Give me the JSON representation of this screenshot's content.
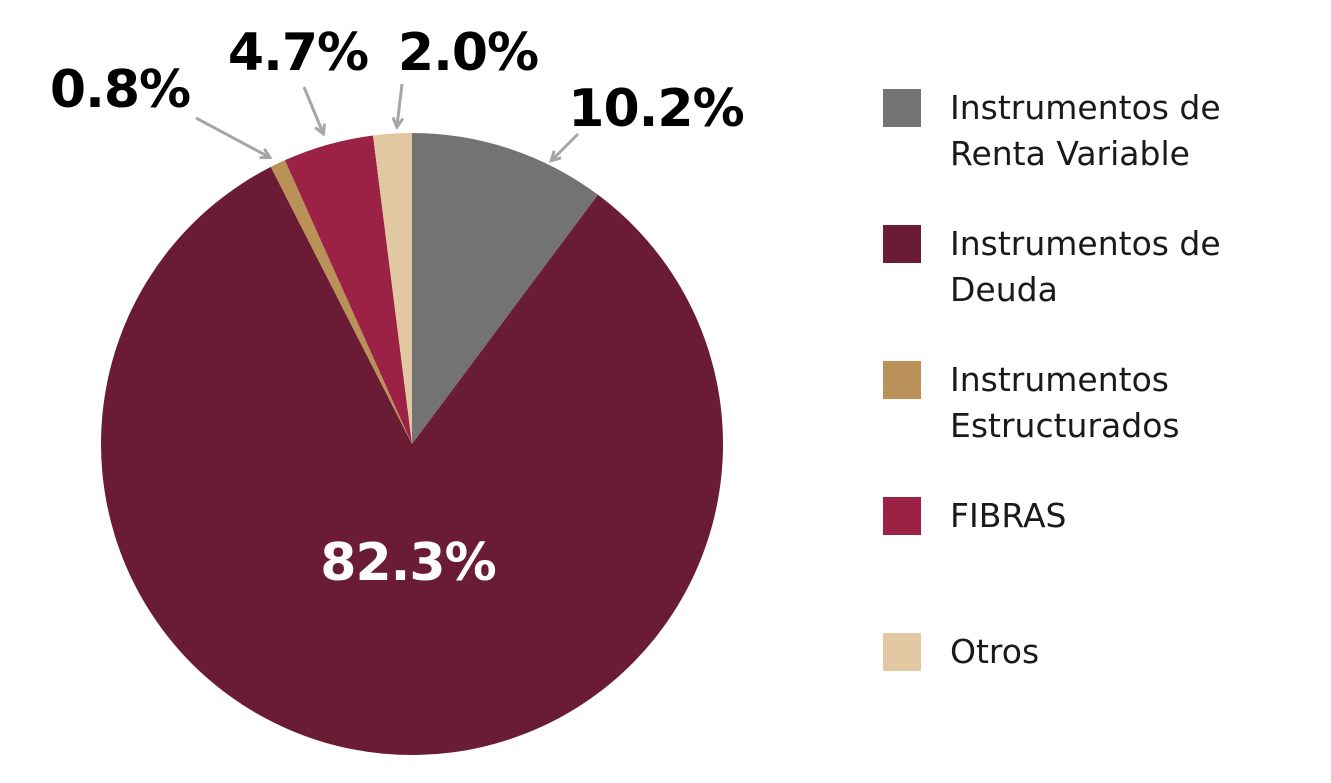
{
  "chart_data": {
    "type": "pie",
    "title": "",
    "categories": [
      "Instrumentos de Renta Variable",
      "Instrumentos de Deuda",
      "Instrumentos Estructurados",
      "FIBRAS",
      "Otros"
    ],
    "values": [
      10.2,
      82.3,
      0.8,
      4.7,
      2.0
    ],
    "value_labels": [
      "10.2%",
      "82.3%",
      "0.8%",
      "4.7%",
      "2.0%"
    ],
    "colors": [
      "#737373",
      "#6a1c35",
      "#b99159",
      "#9b2245",
      "#e1c8a3"
    ],
    "legend_lines": [
      [
        "Instrumentos de",
        "Renta Variable"
      ],
      [
        "Instrumentos de",
        "Deuda"
      ],
      [
        "Instrumentos",
        "Estructurados"
      ],
      [
        "FIBRAS"
      ],
      [
        "Otros"
      ]
    ],
    "start_angle": "top (12 o'clock)",
    "direction": "clockwise",
    "legend_position": "right"
  }
}
